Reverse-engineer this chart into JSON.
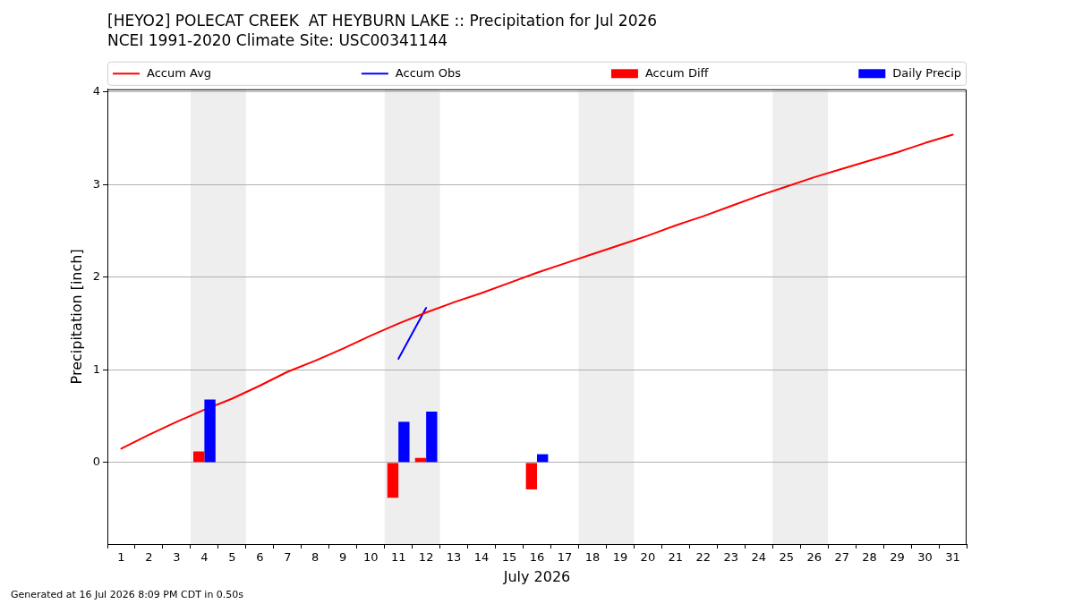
{
  "chart_data": {
    "type": "line",
    "title": "[HEYO2] POLECAT CREEK  AT HEYBURN LAKE :: Precipitation for Jul 2026",
    "subtitle": "NCEI 1991-2020 Climate Site: USC00341144",
    "xlabel": "July 2026",
    "ylabel": "Precipitation [inch]",
    "x": [
      1,
      2,
      3,
      4,
      5,
      6,
      7,
      8,
      9,
      10,
      11,
      12,
      13,
      14,
      15,
      16,
      17,
      18,
      19,
      20,
      21,
      22,
      23,
      24,
      25,
      26,
      27,
      28,
      29,
      30,
      31
    ],
    "xlim": [
      0.5,
      31.5
    ],
    "xticks": [
      1,
      2,
      3,
      4,
      5,
      6,
      7,
      8,
      9,
      10,
      11,
      12,
      13,
      14,
      15,
      16,
      17,
      18,
      19,
      20,
      21,
      22,
      23,
      24,
      25,
      26,
      27,
      28,
      29,
      30,
      31
    ],
    "ylim": [
      -0.88,
      4.03
    ],
    "yticks": [
      0,
      1,
      2,
      3,
      4
    ],
    "grid": "y",
    "legend": "top",
    "series": [
      {
        "name": "Accum Avg",
        "color": "#ff0000",
        "values": [
          0.15,
          0.3,
          0.44,
          0.57,
          0.69,
          0.83,
          0.98,
          1.1,
          1.23,
          1.37,
          1.5,
          1.62,
          1.73,
          1.83,
          1.94,
          2.05,
          2.15,
          2.25,
          2.35,
          2.45,
          2.56,
          2.66,
          2.77,
          2.88,
          2.98,
          3.08,
          3.17,
          3.26,
          3.35,
          3.45,
          3.54
        ]
      },
      {
        "name": "Accum Obs",
        "color": "#0000ff",
        "values": [
          null,
          null,
          null,
          null,
          null,
          null,
          null,
          null,
          null,
          null,
          1.12,
          1.67,
          null,
          null,
          null,
          null,
          null,
          null,
          null,
          null,
          null,
          null,
          null,
          null,
          null,
          null,
          null,
          null,
          null,
          null,
          null
        ]
      },
      {
        "name": "Accum Diff",
        "type": "bar",
        "color": "#ff0000",
        "values": [
          null,
          null,
          null,
          0.12,
          null,
          null,
          null,
          null,
          null,
          null,
          -0.38,
          0.05,
          null,
          null,
          null,
          -0.29,
          null,
          null,
          null,
          null,
          null,
          null,
          null,
          null,
          null,
          null,
          null,
          null,
          null,
          null,
          null
        ]
      },
      {
        "name": "Daily Precip",
        "type": "bar",
        "color": "#0000ff",
        "values": [
          null,
          null,
          null,
          0.68,
          null,
          null,
          null,
          null,
          null,
          null,
          0.44,
          0.55,
          null,
          null,
          null,
          0.09,
          null,
          null,
          null,
          null,
          null,
          null,
          null,
          null,
          null,
          null,
          null,
          null,
          null,
          null,
          null
        ]
      }
    ],
    "bands": [
      {
        "axis": "x",
        "from": 3.5,
        "to": 5.5,
        "color": "#eeeeee"
      },
      {
        "axis": "x",
        "from": 10.5,
        "to": 12.5,
        "color": "#eeeeee"
      },
      {
        "axis": "x",
        "from": 17.5,
        "to": 19.5,
        "color": "#eeeeee"
      },
      {
        "axis": "x",
        "from": 24.5,
        "to": 26.5,
        "color": "#eeeeee"
      }
    ],
    "annotations": [
      "Generated at 16 Jul 2026 8:09 PM CDT in 0.50s"
    ]
  }
}
